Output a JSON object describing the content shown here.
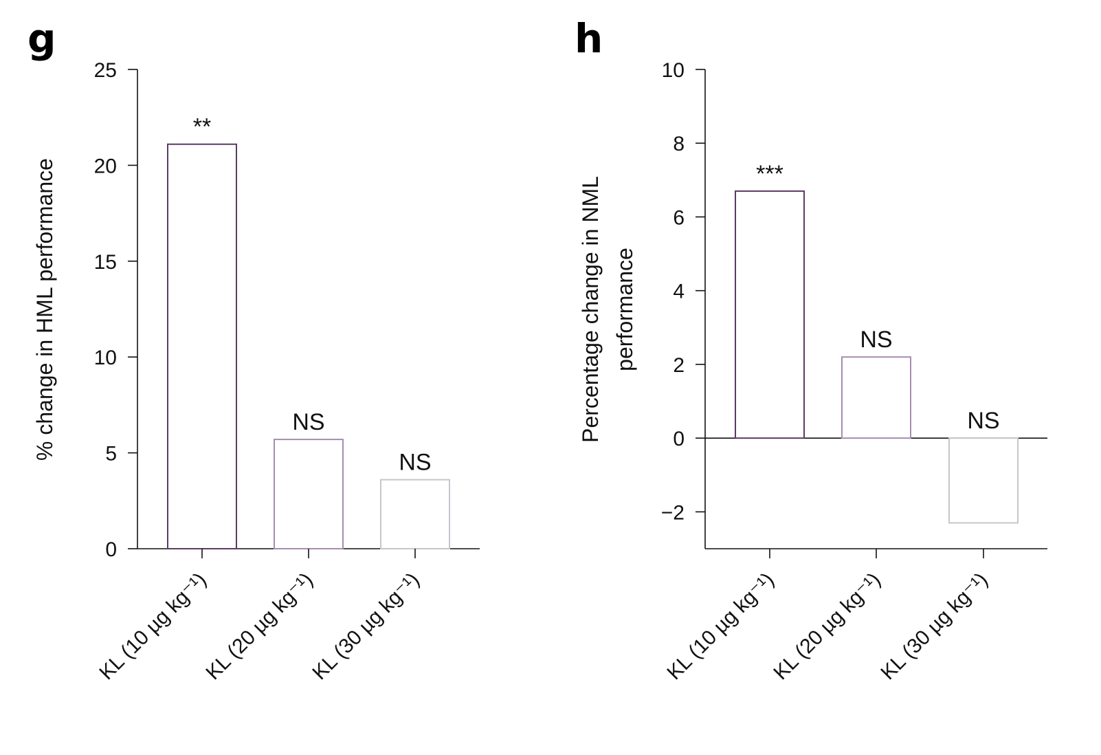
{
  "panels": [
    {
      "letter": "g",
      "ylabel_lines": [
        "% change in HML performance"
      ]
    },
    {
      "letter": "h",
      "ylabel_lines": [
        "Percentage change in NML",
        "performance"
      ]
    }
  ],
  "chart_data": [
    {
      "type": "bar",
      "panel": "g",
      "categories": [
        "KL (10 µg kg⁻¹)",
        "KL (20 µg kg⁻¹)",
        "KL (30 µg kg⁻¹)"
      ],
      "values": [
        21.1,
        5.7,
        3.6
      ],
      "annotations": [
        "**",
        "NS",
        "NS"
      ],
      "bar_colors": [
        "#5b3a63",
        "#a58db0",
        "#c9c4cb"
      ],
      "ylim": [
        0,
        25
      ],
      "yticks": [
        0,
        5,
        10,
        15,
        20,
        25
      ],
      "ylabel": "% change in HML performance",
      "grid": false
    },
    {
      "type": "bar",
      "panel": "h",
      "categories": [
        "KL (10 µg kg⁻¹)",
        "KL (20 µg kg⁻¹)",
        "KL (30 µg kg⁻¹)"
      ],
      "values": [
        6.7,
        2.2,
        -2.3
      ],
      "annotations": [
        "***",
        "NS",
        "NS"
      ],
      "bar_colors": [
        "#5b3a63",
        "#a58db0",
        "#c9c4cb"
      ],
      "ylim": [
        -3,
        10
      ],
      "yticks": [
        -2,
        0,
        2,
        4,
        6,
        8,
        10
      ],
      "ylabel": "Percentage change in NML performance",
      "grid": false
    }
  ]
}
